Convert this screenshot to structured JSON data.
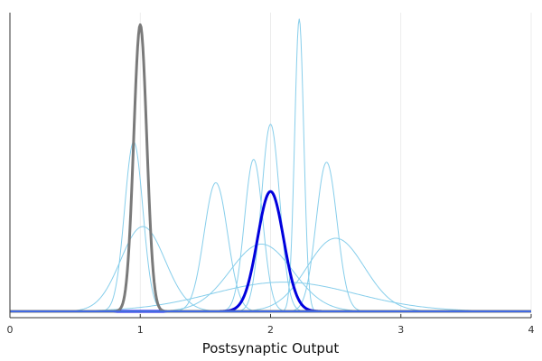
{
  "chart_data": {
    "type": "line",
    "title": "",
    "xlabel": "Postsynaptic Output",
    "ylabel": "",
    "xlim": [
      0,
      4
    ],
    "ylim": [
      0,
      1
    ],
    "x_ticks": [
      "0",
      "1",
      "2",
      "3",
      "4"
    ],
    "x_tick_values": [
      0,
      1,
      2,
      3,
      4
    ],
    "grid": true,
    "legend": "none",
    "colors": {
      "light_curves": "#87ceeb",
      "bold_blue": "#0000dd",
      "bold_gray": "#7a7a7a",
      "baseline": "#4169e1",
      "grid": "#e8e8e8",
      "axis": "#333333"
    },
    "series": [
      {
        "style": "light",
        "mean": 0.95,
        "sd": 0.07,
        "peak": 0.58
      },
      {
        "style": "light",
        "mean": 1.02,
        "sd": 0.17,
        "peak": 0.29
      },
      {
        "style": "light",
        "mean": 1.58,
        "sd": 0.09,
        "peak": 0.44
      },
      {
        "style": "light",
        "mean": 1.87,
        "sd": 0.07,
        "peak": 0.52
      },
      {
        "style": "light",
        "mean": 1.93,
        "sd": 0.24,
        "peak": 0.23
      },
      {
        "style": "light",
        "mean": 2.0,
        "sd": 0.07,
        "peak": 0.64
      },
      {
        "style": "light",
        "mean": 2.1,
        "sd": 0.55,
        "peak": 0.1
      },
      {
        "style": "light",
        "mean": 2.22,
        "sd": 0.035,
        "peak": 1.0
      },
      {
        "style": "light",
        "mean": 2.43,
        "sd": 0.08,
        "peak": 0.51
      },
      {
        "style": "light",
        "mean": 2.5,
        "sd": 0.22,
        "peak": 0.25
      },
      {
        "style": "blue",
        "mean": 2.0,
        "sd": 0.1,
        "peak": 0.41
      },
      {
        "style": "gray",
        "mean": 1.0,
        "sd": 0.05,
        "peak": 0.98
      }
    ]
  }
}
